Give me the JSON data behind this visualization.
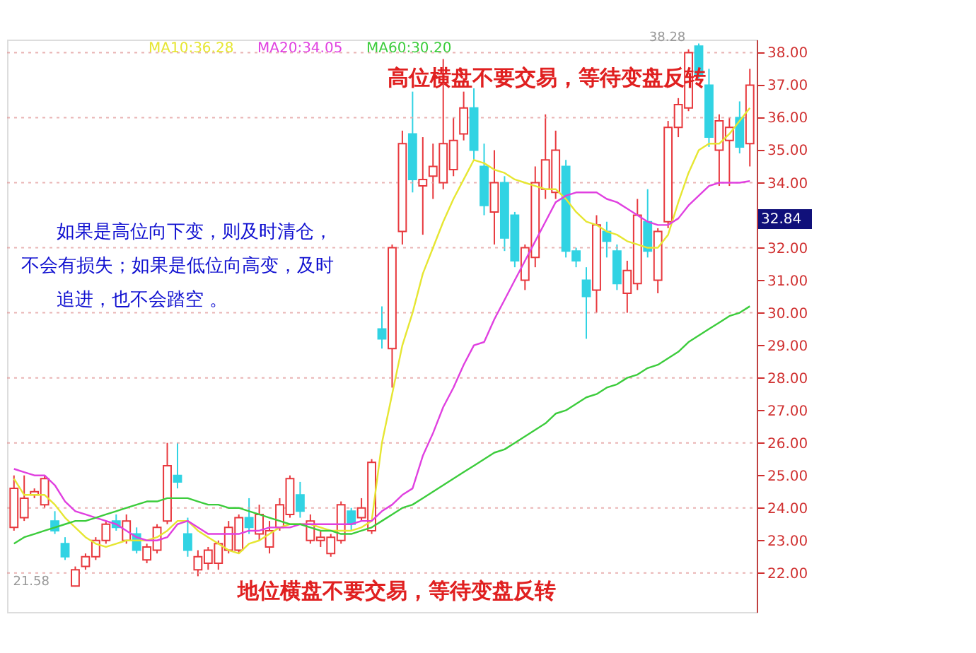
{
  "chart_data": {
    "type": "candlestick",
    "categories": [
      null,
      null,
      null,
      null,
      null,
      null,
      null,
      null,
      null,
      null,
      null,
      null,
      null,
      null,
      null,
      null,
      null,
      null,
      null,
      null,
      null,
      null,
      null,
      null,
      null,
      null,
      null,
      null,
      null,
      null,
      null,
      null,
      null,
      null,
      null,
      null,
      null,
      null,
      null,
      null,
      null,
      null,
      null,
      null,
      null,
      null,
      null,
      null,
      null,
      null,
      null,
      null,
      null,
      null,
      null,
      null,
      null,
      null,
      null,
      null,
      null,
      null,
      null,
      null,
      null,
      null,
      null,
      null,
      null,
      null,
      null,
      null,
      null
    ],
    "ohlc": [
      [
        23.4,
        25.0,
        23.3,
        24.6
      ],
      [
        23.7,
        25.0,
        23.6,
        24.3
      ],
      [
        24.4,
        24.6,
        24.3,
        24.5
      ],
      [
        24.1,
        25.0,
        24.0,
        24.9
      ],
      [
        23.6,
        23.9,
        23.2,
        23.3
      ],
      [
        22.9,
        23.1,
        22.4,
        22.5
      ],
      [
        21.6,
        22.2,
        21.58,
        22.1
      ],
      [
        22.2,
        22.6,
        22.1,
        22.5
      ],
      [
        22.5,
        23.1,
        22.4,
        23.0
      ],
      [
        23.0,
        23.6,
        22.9,
        23.5
      ],
      [
        23.6,
        23.8,
        23.3,
        23.4
      ],
      [
        23.0,
        23.8,
        22.9,
        23.6
      ],
      [
        23.2,
        23.4,
        22.6,
        22.7
      ],
      [
        22.4,
        22.9,
        22.3,
        22.8
      ],
      [
        22.7,
        23.5,
        22.6,
        23.4
      ],
      [
        23.6,
        26.0,
        23.5,
        25.3
      ],
      [
        25.0,
        26.0,
        24.6,
        24.8
      ],
      [
        23.2,
        23.7,
        22.5,
        22.7
      ],
      [
        22.1,
        22.7,
        21.9,
        22.5
      ],
      [
        22.3,
        22.8,
        22.1,
        22.7
      ],
      [
        22.3,
        23.0,
        22.1,
        22.9
      ],
      [
        22.7,
        23.6,
        22.6,
        23.4
      ],
      [
        22.7,
        23.8,
        22.6,
        23.7
      ],
      [
        23.7,
        24.3,
        23.2,
        23.4
      ],
      [
        23.2,
        24.1,
        23.0,
        23.8
      ],
      [
        22.8,
        23.6,
        22.6,
        23.3
      ],
      [
        23.4,
        24.3,
        23.3,
        24.1
      ],
      [
        23.8,
        25.0,
        23.7,
        24.9
      ],
      [
        24.4,
        24.8,
        23.7,
        23.9
      ],
      [
        23.0,
        23.8,
        22.9,
        23.6
      ],
      [
        23.0,
        23.3,
        22.8,
        23.1
      ],
      [
        22.6,
        23.2,
        22.5,
        23.1
      ],
      [
        23.0,
        24.2,
        22.9,
        24.1
      ],
      [
        23.9,
        24.0,
        23.3,
        23.5
      ],
      [
        23.7,
        24.3,
        23.6,
        24.0
      ],
      [
        23.3,
        25.5,
        23.2,
        25.4
      ],
      [
        29.5,
        30.2,
        28.9,
        29.2
      ],
      [
        28.9,
        32.1,
        27.7,
        32.0
      ],
      [
        32.5,
        35.6,
        32.1,
        35.2
      ],
      [
        35.5,
        36.8,
        33.7,
        34.1
      ],
      [
        33.9,
        35.4,
        32.4,
        34.1
      ],
      [
        34.2,
        35.2,
        33.5,
        34.5
      ],
      [
        34.0,
        37.8,
        33.8,
        35.2
      ],
      [
        34.4,
        36.0,
        34.2,
        35.3
      ],
      [
        35.5,
        36.8,
        35.3,
        36.3
      ],
      [
        36.3,
        36.9,
        34.7,
        35.0
      ],
      [
        34.5,
        35.2,
        33.0,
        33.3
      ],
      [
        33.1,
        35.0,
        32.1,
        34.0
      ],
      [
        34.0,
        34.2,
        31.9,
        32.3
      ],
      [
        33.0,
        33.1,
        31.4,
        31.6
      ],
      [
        31.0,
        32.1,
        30.7,
        32.0
      ],
      [
        31.7,
        34.5,
        31.4,
        34.0
      ],
      [
        33.8,
        36.1,
        33.5,
        34.7
      ],
      [
        33.7,
        35.6,
        33.5,
        35.0
      ],
      [
        34.5,
        34.7,
        31.7,
        31.9
      ],
      [
        31.9,
        32.0,
        31.4,
        31.6
      ],
      [
        31.0,
        31.4,
        29.2,
        30.5
      ],
      [
        30.7,
        33.0,
        30.0,
        32.7
      ],
      [
        32.5,
        32.8,
        31.7,
        32.2
      ],
      [
        31.9,
        32.1,
        30.7,
        30.9
      ],
      [
        30.6,
        31.6,
        30.0,
        31.3
      ],
      [
        30.9,
        33.5,
        30.7,
        33.0
      ],
      [
        32.8,
        33.8,
        31.7,
        31.9
      ],
      [
        31.0,
        32.6,
        30.6,
        32.5
      ],
      [
        32.8,
        35.9,
        32.6,
        35.7
      ],
      [
        35.7,
        36.6,
        35.4,
        36.4
      ],
      [
        36.3,
        38.1,
        36.2,
        38.0
      ],
      [
        38.2,
        38.28,
        37.2,
        37.3
      ],
      [
        37.0,
        37.5,
        35.1,
        35.4
      ],
      [
        35.0,
        36.1,
        33.9,
        35.9
      ],
      [
        35.3,
        36.0,
        33.9,
        35.7
      ],
      [
        36.0,
        36.5,
        34.9,
        35.1
      ],
      [
        35.2,
        37.5,
        34.5,
        37.0
      ]
    ],
    "colors": [
      "#e8383d",
      "#e8383d",
      "#e8383d",
      "#e8383d",
      "#31d3e3",
      "#31d3e3",
      "#e8383d",
      "#e8383d",
      "#e8383d",
      "#e8383d",
      "#31d3e3",
      "#e8383d",
      "#31d3e3",
      "#e8383d",
      "#e8383d",
      "#e8383d",
      "#31d3e3",
      "#31d3e3",
      "#e8383d",
      "#e8383d",
      "#e8383d",
      "#e8383d",
      "#e8383d",
      "#31d3e3",
      "#e8383d",
      "#e8383d",
      "#e8383d",
      "#e8383d",
      "#31d3e3",
      "#e8383d",
      "#e8383d",
      "#e8383d",
      "#e8383d",
      "#31d3e3",
      "#e8383d",
      "#e8383d",
      "#31d3e3",
      "#e8383d",
      "#e8383d",
      "#31d3e3",
      "#e8383d",
      "#e8383d",
      "#e8383d",
      "#e8383d",
      "#e8383d",
      "#31d3e3",
      "#31d3e3",
      "#e8383d",
      "#31d3e3",
      "#31d3e3",
      "#e8383d",
      "#e8383d",
      "#e8383d",
      "#e8383d",
      "#31d3e3",
      "#31d3e3",
      "#31d3e3",
      "#e8383d",
      "#31d3e3",
      "#31d3e3",
      "#e8383d",
      "#e8383d",
      "#31d3e3",
      "#e8383d",
      "#e8383d",
      "#e8383d",
      "#e8383d",
      "#31d3e3",
      "#31d3e3",
      "#e8383d",
      "#e8383d",
      "#31d3e3",
      "#e8383d"
    ],
    "series": [
      {
        "name": "MA10:36.28",
        "type": "line",
        "color": "#e6e632",
        "values": [
          24.9,
          24.4,
          24.4,
          24.4,
          24.1,
          23.7,
          23.4,
          23.1,
          22.9,
          22.8,
          22.9,
          23.0,
          23.0,
          23.0,
          23.1,
          23.3,
          23.6,
          23.6,
          23.3,
          23.1,
          22.9,
          22.7,
          22.6,
          22.9,
          23.0,
          23.2,
          23.4,
          23.5,
          23.5,
          23.5,
          23.4,
          23.3,
          23.3,
          23.3,
          23.4,
          23.6,
          26.0,
          27.5,
          29.0,
          30.0,
          31.2,
          32.0,
          32.8,
          33.5,
          34.1,
          34.7,
          34.6,
          34.4,
          34.3,
          34.1,
          34.0,
          33.9,
          33.8,
          33.8,
          33.5,
          33.1,
          32.8,
          32.7,
          32.5,
          32.4,
          32.2,
          32.1,
          32.0,
          32.0,
          32.4,
          33.4,
          34.3,
          35.0,
          35.2,
          35.2,
          35.5,
          35.9,
          36.3
        ]
      },
      {
        "name": "MA20:34.05",
        "type": "line",
        "color": "#e040e0",
        "values": [
          25.2,
          25.1,
          25.0,
          25.0,
          24.7,
          24.2,
          23.9,
          23.8,
          23.7,
          23.6,
          23.5,
          23.3,
          23.1,
          23.0,
          23.0,
          23.1,
          23.5,
          23.6,
          23.4,
          23.2,
          23.2,
          23.2,
          23.2,
          23.3,
          23.3,
          23.4,
          23.4,
          23.4,
          23.5,
          23.5,
          23.5,
          23.5,
          23.5,
          23.5,
          23.6,
          23.6,
          23.9,
          24.1,
          24.4,
          24.6,
          25.6,
          26.3,
          27.1,
          27.7,
          28.4,
          29.0,
          29.1,
          29.8,
          30.4,
          31.0,
          31.6,
          32.2,
          32.8,
          33.4,
          33.6,
          33.7,
          33.7,
          33.7,
          33.5,
          33.4,
          33.2,
          33.0,
          32.8,
          32.7,
          32.7,
          32.9,
          33.3,
          33.6,
          33.9,
          34.0,
          34.0,
          34.0,
          34.05
        ]
      },
      {
        "name": "MA60:30.20",
        "type": "line",
        "color": "#3ccc3c",
        "values": [
          22.9,
          23.1,
          23.2,
          23.3,
          23.4,
          23.5,
          23.6,
          23.6,
          23.7,
          23.8,
          23.9,
          24.0,
          24.1,
          24.2,
          24.2,
          24.3,
          24.3,
          24.3,
          24.2,
          24.1,
          24.1,
          24.0,
          24.0,
          23.9,
          23.8,
          23.7,
          23.6,
          23.5,
          23.5,
          23.4,
          23.3,
          23.3,
          23.2,
          23.2,
          23.3,
          23.4,
          23.6,
          23.8,
          24.0,
          24.1,
          24.3,
          24.5,
          24.7,
          24.9,
          25.1,
          25.3,
          25.5,
          25.7,
          25.8,
          26.0,
          26.2,
          26.4,
          26.6,
          26.9,
          27.0,
          27.2,
          27.4,
          27.5,
          27.7,
          27.8,
          28.0,
          28.1,
          28.3,
          28.4,
          28.6,
          28.8,
          29.1,
          29.3,
          29.5,
          29.7,
          29.9,
          30.0,
          30.2
        ]
      }
    ],
    "ylim": [
      20.8,
      38.4
    ],
    "yticks": [
      {
        "value": 22,
        "label": "22.00"
      },
      {
        "value": 23,
        "label": "23.00"
      },
      {
        "value": 24,
        "label": "24.00"
      },
      {
        "value": 25,
        "label": "25.00"
      },
      {
        "value": 26,
        "label": "26.00"
      },
      {
        "value": 27,
        "label": "27.00"
      },
      {
        "value": 28,
        "label": "28.00"
      },
      {
        "value": 29,
        "label": "29.00"
      },
      {
        "value": 30,
        "label": "30.00"
      },
      {
        "value": 31,
        "label": "31.00"
      },
      {
        "value": 32,
        "label": "32.00"
      },
      {
        "value": 33,
        "label": null
      },
      {
        "value": 34,
        "label": "34.00"
      },
      {
        "value": 35,
        "label": "35.00"
      },
      {
        "value": 36,
        "label": "36.00"
      },
      {
        "value": 37,
        "label": "37.00"
      },
      {
        "value": 38,
        "label": "38.00"
      }
    ],
    "tick_labels": "y",
    "grid": "y",
    "legend": "top left",
    "annotations": [
      "高位横盘不要交易，等待变盘反转",
      "如果是高位向下变，则及时清仓，",
      "不会有损失；如果是低位向高变，及时",
      "追进，也不会踏空 。",
      "地位横盘不要交易，等待变盘反转",
      "38.28",
      "21.58",
      "32.84"
    ]
  }
}
